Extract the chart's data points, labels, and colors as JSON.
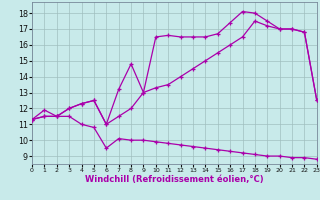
{
  "xlabel": "Windchill (Refroidissement éolien,°C)",
  "background_color": "#c8eaea",
  "grid_color": "#a0bfbf",
  "line_color": "#aa00aa",
  "xlim": [
    0,
    23
  ],
  "ylim": [
    8.5,
    18.7
  ],
  "xticks": [
    0,
    1,
    2,
    3,
    4,
    5,
    6,
    7,
    8,
    9,
    10,
    11,
    12,
    13,
    14,
    15,
    16,
    17,
    18,
    19,
    20,
    21,
    22,
    23
  ],
  "yticks": [
    9,
    10,
    11,
    12,
    13,
    14,
    15,
    16,
    17,
    18
  ],
  "line1_x": [
    0,
    1,
    2,
    3,
    4,
    5,
    6,
    7,
    8,
    9,
    10,
    11,
    12,
    13,
    14,
    15,
    16,
    17,
    18,
    19,
    20,
    21,
    22,
    23
  ],
  "line1_y": [
    11.3,
    11.9,
    11.5,
    11.5,
    11.0,
    10.8,
    9.5,
    10.1,
    10.0,
    10.0,
    9.9,
    9.8,
    9.7,
    9.6,
    9.5,
    9.4,
    9.3,
    9.2,
    9.1,
    9.0,
    9.0,
    8.9,
    8.9,
    8.8
  ],
  "line2_x": [
    0,
    1,
    2,
    3,
    4,
    5,
    6,
    7,
    8,
    9,
    10,
    11,
    12,
    13,
    14,
    15,
    16,
    17,
    18,
    19,
    20,
    21,
    22,
    23
  ],
  "line2_y": [
    11.3,
    11.5,
    11.5,
    12.0,
    12.3,
    12.5,
    11.0,
    11.5,
    12.0,
    13.0,
    13.3,
    13.5,
    14.0,
    14.5,
    15.0,
    15.5,
    16.0,
    16.5,
    17.5,
    17.2,
    17.0,
    17.0,
    16.8,
    12.5
  ],
  "line3_x": [
    0,
    1,
    2,
    3,
    4,
    5,
    6,
    7,
    8,
    9,
    10,
    11,
    12,
    13,
    14,
    15,
    16,
    17,
    18,
    19,
    20,
    21,
    22,
    23
  ],
  "line3_y": [
    11.3,
    11.5,
    11.5,
    12.0,
    12.3,
    12.5,
    11.0,
    13.2,
    14.8,
    13.0,
    16.5,
    16.6,
    16.5,
    16.5,
    16.5,
    16.7,
    17.4,
    18.1,
    18.0,
    17.5,
    17.0,
    17.0,
    16.8,
    12.5
  ],
  "marker": "+",
  "markersize": 3.5,
  "linewidth": 0.9,
  "xlabel_fontsize": 6.0,
  "tick_fontsize": 5.8
}
